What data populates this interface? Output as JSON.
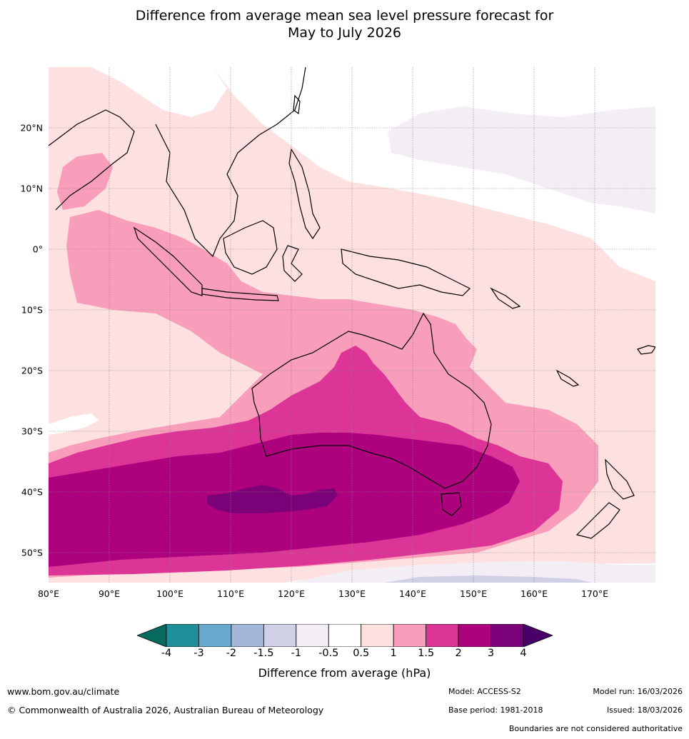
{
  "title": {
    "line1": "Difference from average mean sea level pressure forecast for",
    "line2": "May to July 2026"
  },
  "map": {
    "lat_labels": [
      "20°N",
      "10°N",
      "0°",
      "10°S",
      "20°S",
      "30°S",
      "40°S",
      "50°S"
    ],
    "lon_labels": [
      "80°E",
      "90°E",
      "100°E",
      "110°E",
      "120°E",
      "130°E",
      "140°E",
      "150°E",
      "160°E",
      "170°E"
    ],
    "lon_range": [
      80,
      180
    ],
    "lat_range": [
      -55,
      30
    ]
  },
  "colorbar": {
    "title": "Difference from average (hPa)",
    "ticks": [
      "-4",
      "-3",
      "-2",
      "-1.5",
      "-1",
      "-0.5",
      "0.5",
      "1",
      "1.5",
      "2",
      "3",
      "4"
    ],
    "colors": [
      "#076a5e",
      "#1f8f9a",
      "#67a9cf",
      "#a3b7d8",
      "#cfd0e6",
      "#f3eef5",
      "#ffffff",
      "#fde0e0",
      "#f89dba",
      "#dd3497",
      "#ae017e",
      "#7a0177",
      "#49006a"
    ]
  },
  "footer": {
    "website": "www.bom.gov.au/climate",
    "copyright": "© Commonwealth of Australia 2026, Australian Bureau of Meteorology",
    "model": "Model: ACCESS-S2",
    "base_period": "Base period: 1981-2018",
    "model_run": "Model run: 16/03/2026",
    "issued": "Issued: 18/03/2026",
    "disclaimer": "Boundaries are not considered authoritative"
  }
}
